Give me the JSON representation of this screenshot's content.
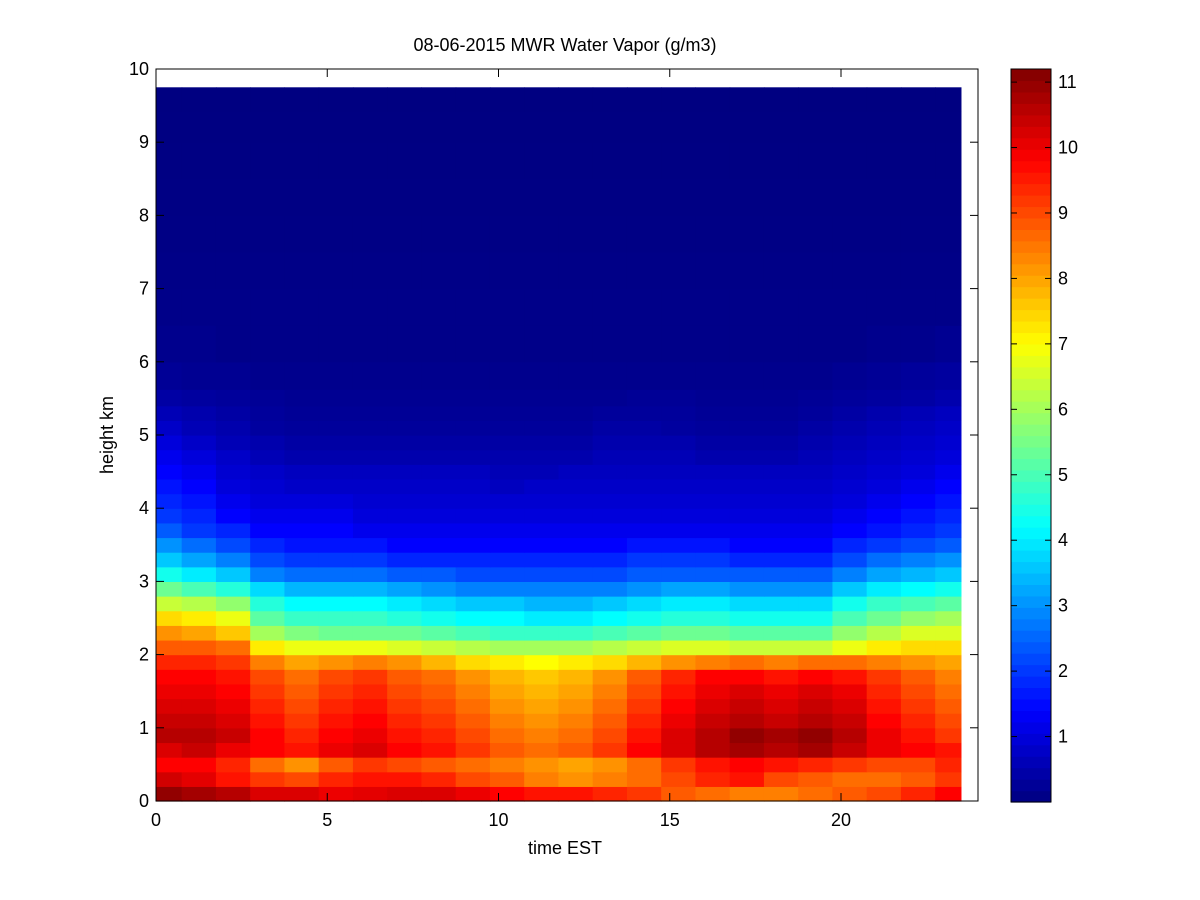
{
  "chart_data": {
    "type": "heatmap",
    "title": "08-06-2015 MWR Water Vapor (g/m3)",
    "xlabel": "time EST",
    "ylabel": "height km",
    "xlim": [
      0,
      24
    ],
    "ylim": [
      0,
      10
    ],
    "xticks": [
      0,
      5,
      10,
      15,
      20
    ],
    "yticks": [
      0,
      1,
      2,
      3,
      4,
      5,
      6,
      7,
      8,
      9,
      10
    ],
    "colorbar": {
      "clim": [
        0,
        11.2
      ],
      "ticks": [
        1,
        2,
        3,
        4,
        5,
        6,
        7,
        8,
        9,
        10,
        11
      ],
      "colormap": "jet"
    },
    "data_extent": {
      "x": [
        0,
        23.5
      ],
      "y": [
        0,
        9.75
      ]
    },
    "x": [
      0.25,
      1.25,
      2.25,
      3.25,
      4.25,
      5.25,
      6.25,
      7.25,
      8.25,
      9.25,
      10.25,
      11.25,
      12.25,
      13.25,
      14.25,
      15.25,
      16.25,
      17.25,
      18.25,
      19.25,
      20.25,
      21.25,
      22.25,
      23.25
    ],
    "heights": [
      0.1,
      0.3,
      0.5,
      0.7,
      0.9,
      1.1,
      1.3,
      1.5,
      1.7,
      1.9,
      2.1,
      2.3,
      2.5,
      2.7,
      2.9,
      3.1,
      3.3,
      3.5,
      3.7,
      3.9,
      4.1,
      4.3,
      4.5,
      4.7,
      4.9,
      5.1,
      5.3,
      5.5,
      5.75,
      6.25,
      6.75,
      7.25,
      7.75,
      8.25,
      8.75,
      9.25,
      9.6
    ],
    "profiles": [
      {
        "height": 0.1,
        "values": [
          11.0,
          10.8,
          10.6,
          10.2,
          10.2,
          10.0,
          10.1,
          10.2,
          10.2,
          10.0,
          9.8,
          9.6,
          9.6,
          9.4,
          9.2,
          8.8,
          8.6,
          8.4,
          8.4,
          8.6,
          8.8,
          9.0,
          9.4,
          9.8
        ]
      },
      {
        "height": 0.3,
        "values": [
          10.3,
          10.1,
          9.6,
          9.2,
          9.0,
          9.4,
          9.6,
          9.6,
          9.4,
          9.0,
          8.8,
          8.4,
          8.2,
          8.4,
          8.6,
          9.0,
          9.4,
          9.6,
          9.0,
          8.8,
          8.6,
          8.6,
          8.8,
          9.2
        ]
      },
      {
        "height": 0.5,
        "values": [
          9.8,
          9.8,
          9.4,
          8.6,
          8.2,
          8.8,
          9.2,
          9.0,
          8.8,
          8.6,
          8.4,
          8.2,
          8.0,
          8.2,
          8.6,
          9.2,
          9.6,
          9.8,
          9.6,
          9.4,
          9.2,
          9.0,
          9.0,
          9.4
        ]
      },
      {
        "height": 0.7,
        "values": [
          10.2,
          10.4,
          10.0,
          9.8,
          9.6,
          10.0,
          10.2,
          9.8,
          9.6,
          9.2,
          8.8,
          8.6,
          8.8,
          9.2,
          9.8,
          10.2,
          10.6,
          10.8,
          10.6,
          10.8,
          10.4,
          10.0,
          9.8,
          9.6
        ]
      },
      {
        "height": 0.9,
        "values": [
          10.6,
          10.6,
          10.4,
          9.8,
          9.4,
          9.8,
          10.0,
          9.6,
          9.4,
          9.0,
          8.6,
          8.4,
          8.6,
          9.0,
          9.6,
          10.2,
          10.6,
          11.0,
          10.8,
          11.0,
          10.6,
          10.0,
          9.6,
          9.2
        ]
      },
      {
        "height": 1.1,
        "values": [
          10.4,
          10.4,
          10.2,
          9.6,
          9.2,
          9.6,
          9.8,
          9.4,
          9.2,
          8.8,
          8.4,
          8.2,
          8.4,
          8.8,
          9.4,
          10.0,
          10.4,
          10.6,
          10.4,
          10.6,
          10.4,
          9.8,
          9.4,
          9.0
        ]
      },
      {
        "height": 1.3,
        "values": [
          10.2,
          10.2,
          10.0,
          9.4,
          9.0,
          9.4,
          9.6,
          9.2,
          9.0,
          8.6,
          8.2,
          8.0,
          8.2,
          8.6,
          9.2,
          9.8,
          10.2,
          10.4,
          10.2,
          10.4,
          10.2,
          9.6,
          9.2,
          8.8
        ]
      },
      {
        "height": 1.5,
        "values": [
          10.0,
          10.0,
          9.8,
          9.2,
          8.8,
          9.2,
          9.4,
          9.0,
          8.8,
          8.4,
          8.0,
          7.8,
          8.0,
          8.4,
          9.0,
          9.6,
          10.0,
          10.2,
          10.0,
          10.2,
          10.0,
          9.4,
          9.0,
          8.6
        ]
      },
      {
        "height": 1.7,
        "values": [
          9.8,
          9.8,
          9.6,
          9.0,
          8.6,
          9.0,
          9.2,
          8.8,
          8.6,
          8.2,
          7.8,
          7.6,
          7.8,
          8.2,
          8.8,
          9.4,
          9.8,
          9.8,
          9.6,
          9.8,
          9.6,
          9.2,
          8.8,
          8.4
        ]
      },
      {
        "height": 1.9,
        "values": [
          9.4,
          9.4,
          9.2,
          8.4,
          8.0,
          8.2,
          8.4,
          8.2,
          7.8,
          7.4,
          7.2,
          7.0,
          7.2,
          7.4,
          7.8,
          8.2,
          8.4,
          8.6,
          8.4,
          8.6,
          8.6,
          8.4,
          8.2,
          8.0
        ]
      },
      {
        "height": 2.1,
        "values": [
          8.8,
          8.8,
          8.6,
          7.2,
          6.8,
          6.8,
          6.8,
          6.6,
          6.4,
          6.2,
          6.0,
          6.0,
          6.0,
          6.2,
          6.4,
          6.6,
          6.6,
          6.4,
          6.4,
          6.4,
          6.8,
          7.2,
          7.4,
          7.4
        ]
      },
      {
        "height": 2.3,
        "values": [
          8.2,
          8.0,
          7.6,
          6.0,
          5.6,
          5.4,
          5.4,
          5.4,
          5.2,
          5.0,
          4.8,
          4.8,
          4.8,
          5.0,
          5.2,
          5.4,
          5.4,
          5.2,
          5.2,
          5.2,
          5.8,
          6.2,
          6.6,
          6.6
        ]
      },
      {
        "height": 2.5,
        "values": [
          7.4,
          7.2,
          6.8,
          5.2,
          4.8,
          4.8,
          4.8,
          4.6,
          4.4,
          4.2,
          4.2,
          4.0,
          4.0,
          4.2,
          4.4,
          4.6,
          4.6,
          4.4,
          4.4,
          4.4,
          5.0,
          5.4,
          5.8,
          6.0
        ]
      },
      {
        "height": 2.7,
        "values": [
          6.4,
          6.2,
          5.8,
          4.6,
          4.2,
          4.2,
          4.2,
          4.0,
          3.8,
          3.6,
          3.6,
          3.4,
          3.4,
          3.6,
          3.8,
          4.0,
          4.0,
          3.8,
          3.8,
          3.8,
          4.4,
          4.8,
          5.0,
          5.2
        ]
      },
      {
        "height": 2.9,
        "values": [
          5.4,
          5.0,
          4.6,
          3.8,
          3.4,
          3.4,
          3.4,
          3.2,
          3.0,
          2.8,
          2.8,
          2.8,
          2.8,
          2.8,
          3.0,
          3.2,
          3.2,
          3.0,
          3.0,
          3.0,
          3.6,
          4.0,
          4.2,
          4.4
        ]
      },
      {
        "height": 3.1,
        "values": [
          4.4,
          4.0,
          3.6,
          2.8,
          2.6,
          2.6,
          2.6,
          2.4,
          2.4,
          2.2,
          2.2,
          2.2,
          2.2,
          2.2,
          2.4,
          2.4,
          2.4,
          2.4,
          2.4,
          2.4,
          2.8,
          3.2,
          3.4,
          3.6
        ]
      },
      {
        "height": 3.3,
        "values": [
          3.6,
          3.2,
          2.8,
          2.2,
          2.0,
          2.0,
          2.0,
          1.8,
          1.8,
          1.8,
          1.8,
          1.8,
          1.8,
          1.8,
          2.0,
          2.0,
          2.0,
          1.8,
          1.8,
          1.8,
          2.2,
          2.6,
          2.8,
          3.0
        ]
      },
      {
        "height": 3.5,
        "values": [
          3.0,
          2.6,
          2.2,
          1.8,
          1.6,
          1.6,
          1.6,
          1.4,
          1.4,
          1.4,
          1.4,
          1.4,
          1.4,
          1.4,
          1.6,
          1.6,
          1.6,
          1.4,
          1.4,
          1.4,
          1.8,
          2.0,
          2.2,
          2.4
        ]
      },
      {
        "height": 3.7,
        "values": [
          2.4,
          2.0,
          1.8,
          1.4,
          1.4,
          1.4,
          1.2,
          1.2,
          1.2,
          1.2,
          1.2,
          1.2,
          1.2,
          1.2,
          1.2,
          1.2,
          1.2,
          1.2,
          1.2,
          1.2,
          1.4,
          1.6,
          1.8,
          2.0
        ]
      },
      {
        "height": 3.9,
        "values": [
          2.0,
          1.8,
          1.4,
          1.2,
          1.2,
          1.2,
          1.0,
          1.0,
          1.0,
          1.0,
          1.0,
          1.0,
          1.0,
          1.0,
          1.0,
          1.0,
          1.0,
          1.0,
          1.0,
          1.0,
          1.2,
          1.4,
          1.6,
          1.8
        ]
      },
      {
        "height": 4.1,
        "values": [
          1.8,
          1.6,
          1.2,
          1.0,
          1.0,
          1.0,
          0.9,
          0.9,
          0.9,
          0.9,
          0.9,
          0.9,
          0.9,
          0.9,
          0.9,
          0.9,
          0.9,
          0.9,
          0.9,
          0.9,
          1.0,
          1.2,
          1.4,
          1.6
        ]
      },
      {
        "height": 4.3,
        "values": [
          1.6,
          1.4,
          1.0,
          0.9,
          0.8,
          0.8,
          0.8,
          0.8,
          0.8,
          0.8,
          0.7,
          0.8,
          0.8,
          0.8,
          0.8,
          0.8,
          0.8,
          0.8,
          0.8,
          0.8,
          0.9,
          1.0,
          1.2,
          1.4
        ]
      },
      {
        "height": 4.5,
        "values": [
          1.4,
          1.2,
          0.9,
          0.8,
          0.7,
          0.7,
          0.7,
          0.7,
          0.7,
          0.7,
          0.6,
          0.6,
          0.7,
          0.7,
          0.7,
          0.7,
          0.7,
          0.7,
          0.7,
          0.7,
          0.8,
          0.9,
          1.0,
          1.2
        ]
      },
      {
        "height": 4.7,
        "values": [
          1.2,
          1.0,
          0.8,
          0.6,
          0.5,
          0.5,
          0.5,
          0.5,
          0.5,
          0.5,
          0.5,
          0.5,
          0.5,
          0.6,
          0.6,
          0.6,
          0.5,
          0.5,
          0.5,
          0.6,
          0.7,
          0.8,
          0.9,
          1.0
        ]
      },
      {
        "height": 4.9,
        "values": [
          1.0,
          0.8,
          0.6,
          0.5,
          0.4,
          0.4,
          0.4,
          0.4,
          0.4,
          0.4,
          0.4,
          0.4,
          0.4,
          0.5,
          0.5,
          0.5,
          0.4,
          0.4,
          0.4,
          0.5,
          0.6,
          0.7,
          0.8,
          0.9
        ]
      },
      {
        "height": 5.1,
        "values": [
          0.8,
          0.6,
          0.5,
          0.35,
          0.3,
          0.3,
          0.3,
          0.3,
          0.3,
          0.3,
          0.3,
          0.3,
          0.3,
          0.4,
          0.4,
          0.35,
          0.3,
          0.3,
          0.3,
          0.4,
          0.5,
          0.6,
          0.7,
          0.8
        ]
      },
      {
        "height": 5.3,
        "values": [
          0.6,
          0.5,
          0.4,
          0.3,
          0.25,
          0.25,
          0.25,
          0.25,
          0.25,
          0.25,
          0.25,
          0.25,
          0.25,
          0.3,
          0.3,
          0.3,
          0.25,
          0.25,
          0.25,
          0.3,
          0.4,
          0.5,
          0.6,
          0.7
        ]
      },
      {
        "height": 5.5,
        "values": [
          0.4,
          0.35,
          0.3,
          0.25,
          0.2,
          0.2,
          0.2,
          0.2,
          0.2,
          0.2,
          0.2,
          0.2,
          0.2,
          0.2,
          0.25,
          0.25,
          0.2,
          0.2,
          0.2,
          0.25,
          0.3,
          0.35,
          0.4,
          0.5
        ]
      },
      {
        "height": 5.75,
        "values": [
          0.25,
          0.2,
          0.2,
          0.15,
          0.15,
          0.15,
          0.15,
          0.15,
          0.15,
          0.15,
          0.15,
          0.15,
          0.15,
          0.15,
          0.15,
          0.15,
          0.15,
          0.15,
          0.15,
          0.15,
          0.2,
          0.25,
          0.3,
          0.35
        ]
      },
      {
        "height": 6.25,
        "values": [
          0.15,
          0.15,
          0.1,
          0.1,
          0.1,
          0.1,
          0.1,
          0.1,
          0.1,
          0.1,
          0.1,
          0.1,
          0.1,
          0.1,
          0.1,
          0.1,
          0.1,
          0.1,
          0.1,
          0.1,
          0.1,
          0.15,
          0.15,
          0.2
        ]
      },
      {
        "height": 6.75,
        "values": [
          0.1,
          0.1,
          0.1,
          0.1,
          0.1,
          0.1,
          0.1,
          0.1,
          0.1,
          0.1,
          0.1,
          0.1,
          0.1,
          0.1,
          0.1,
          0.1,
          0.1,
          0.1,
          0.1,
          0.1,
          0.1,
          0.1,
          0.1,
          0.1
        ]
      },
      {
        "height": 7.25,
        "values": [
          0.08,
          0.08,
          0.08,
          0.08,
          0.08,
          0.08,
          0.08,
          0.08,
          0.08,
          0.08,
          0.08,
          0.08,
          0.08,
          0.08,
          0.08,
          0.08,
          0.08,
          0.08,
          0.08,
          0.08,
          0.08,
          0.08,
          0.08,
          0.08
        ]
      },
      {
        "height": 7.75,
        "values": [
          0.06,
          0.06,
          0.06,
          0.06,
          0.06,
          0.06,
          0.06,
          0.06,
          0.06,
          0.06,
          0.06,
          0.06,
          0.06,
          0.06,
          0.06,
          0.06,
          0.06,
          0.06,
          0.06,
          0.06,
          0.06,
          0.06,
          0.06,
          0.06
        ]
      },
      {
        "height": 8.25,
        "values": [
          0.05,
          0.05,
          0.05,
          0.05,
          0.05,
          0.05,
          0.05,
          0.05,
          0.05,
          0.05,
          0.05,
          0.05,
          0.05,
          0.05,
          0.05,
          0.05,
          0.05,
          0.05,
          0.05,
          0.05,
          0.05,
          0.05,
          0.05,
          0.05
        ]
      },
      {
        "height": 8.75,
        "values": [
          0.04,
          0.04,
          0.04,
          0.04,
          0.04,
          0.04,
          0.04,
          0.04,
          0.04,
          0.04,
          0.04,
          0.04,
          0.04,
          0.04,
          0.04,
          0.04,
          0.04,
          0.04,
          0.04,
          0.04,
          0.04,
          0.04,
          0.04,
          0.04
        ]
      },
      {
        "height": 9.25,
        "values": [
          0.03,
          0.03,
          0.03,
          0.03,
          0.03,
          0.03,
          0.03,
          0.03,
          0.03,
          0.03,
          0.03,
          0.03,
          0.03,
          0.03,
          0.03,
          0.03,
          0.03,
          0.03,
          0.03,
          0.03,
          0.03,
          0.03,
          0.03,
          0.03
        ]
      },
      {
        "height": 9.6,
        "values": [
          0.02,
          0.02,
          0.02,
          0.02,
          0.02,
          0.02,
          0.02,
          0.02,
          0.02,
          0.02,
          0.02,
          0.02,
          0.02,
          0.02,
          0.02,
          0.02,
          0.02,
          0.02,
          0.02,
          0.02,
          0.02,
          0.02,
          0.02,
          0.02
        ]
      }
    ]
  }
}
